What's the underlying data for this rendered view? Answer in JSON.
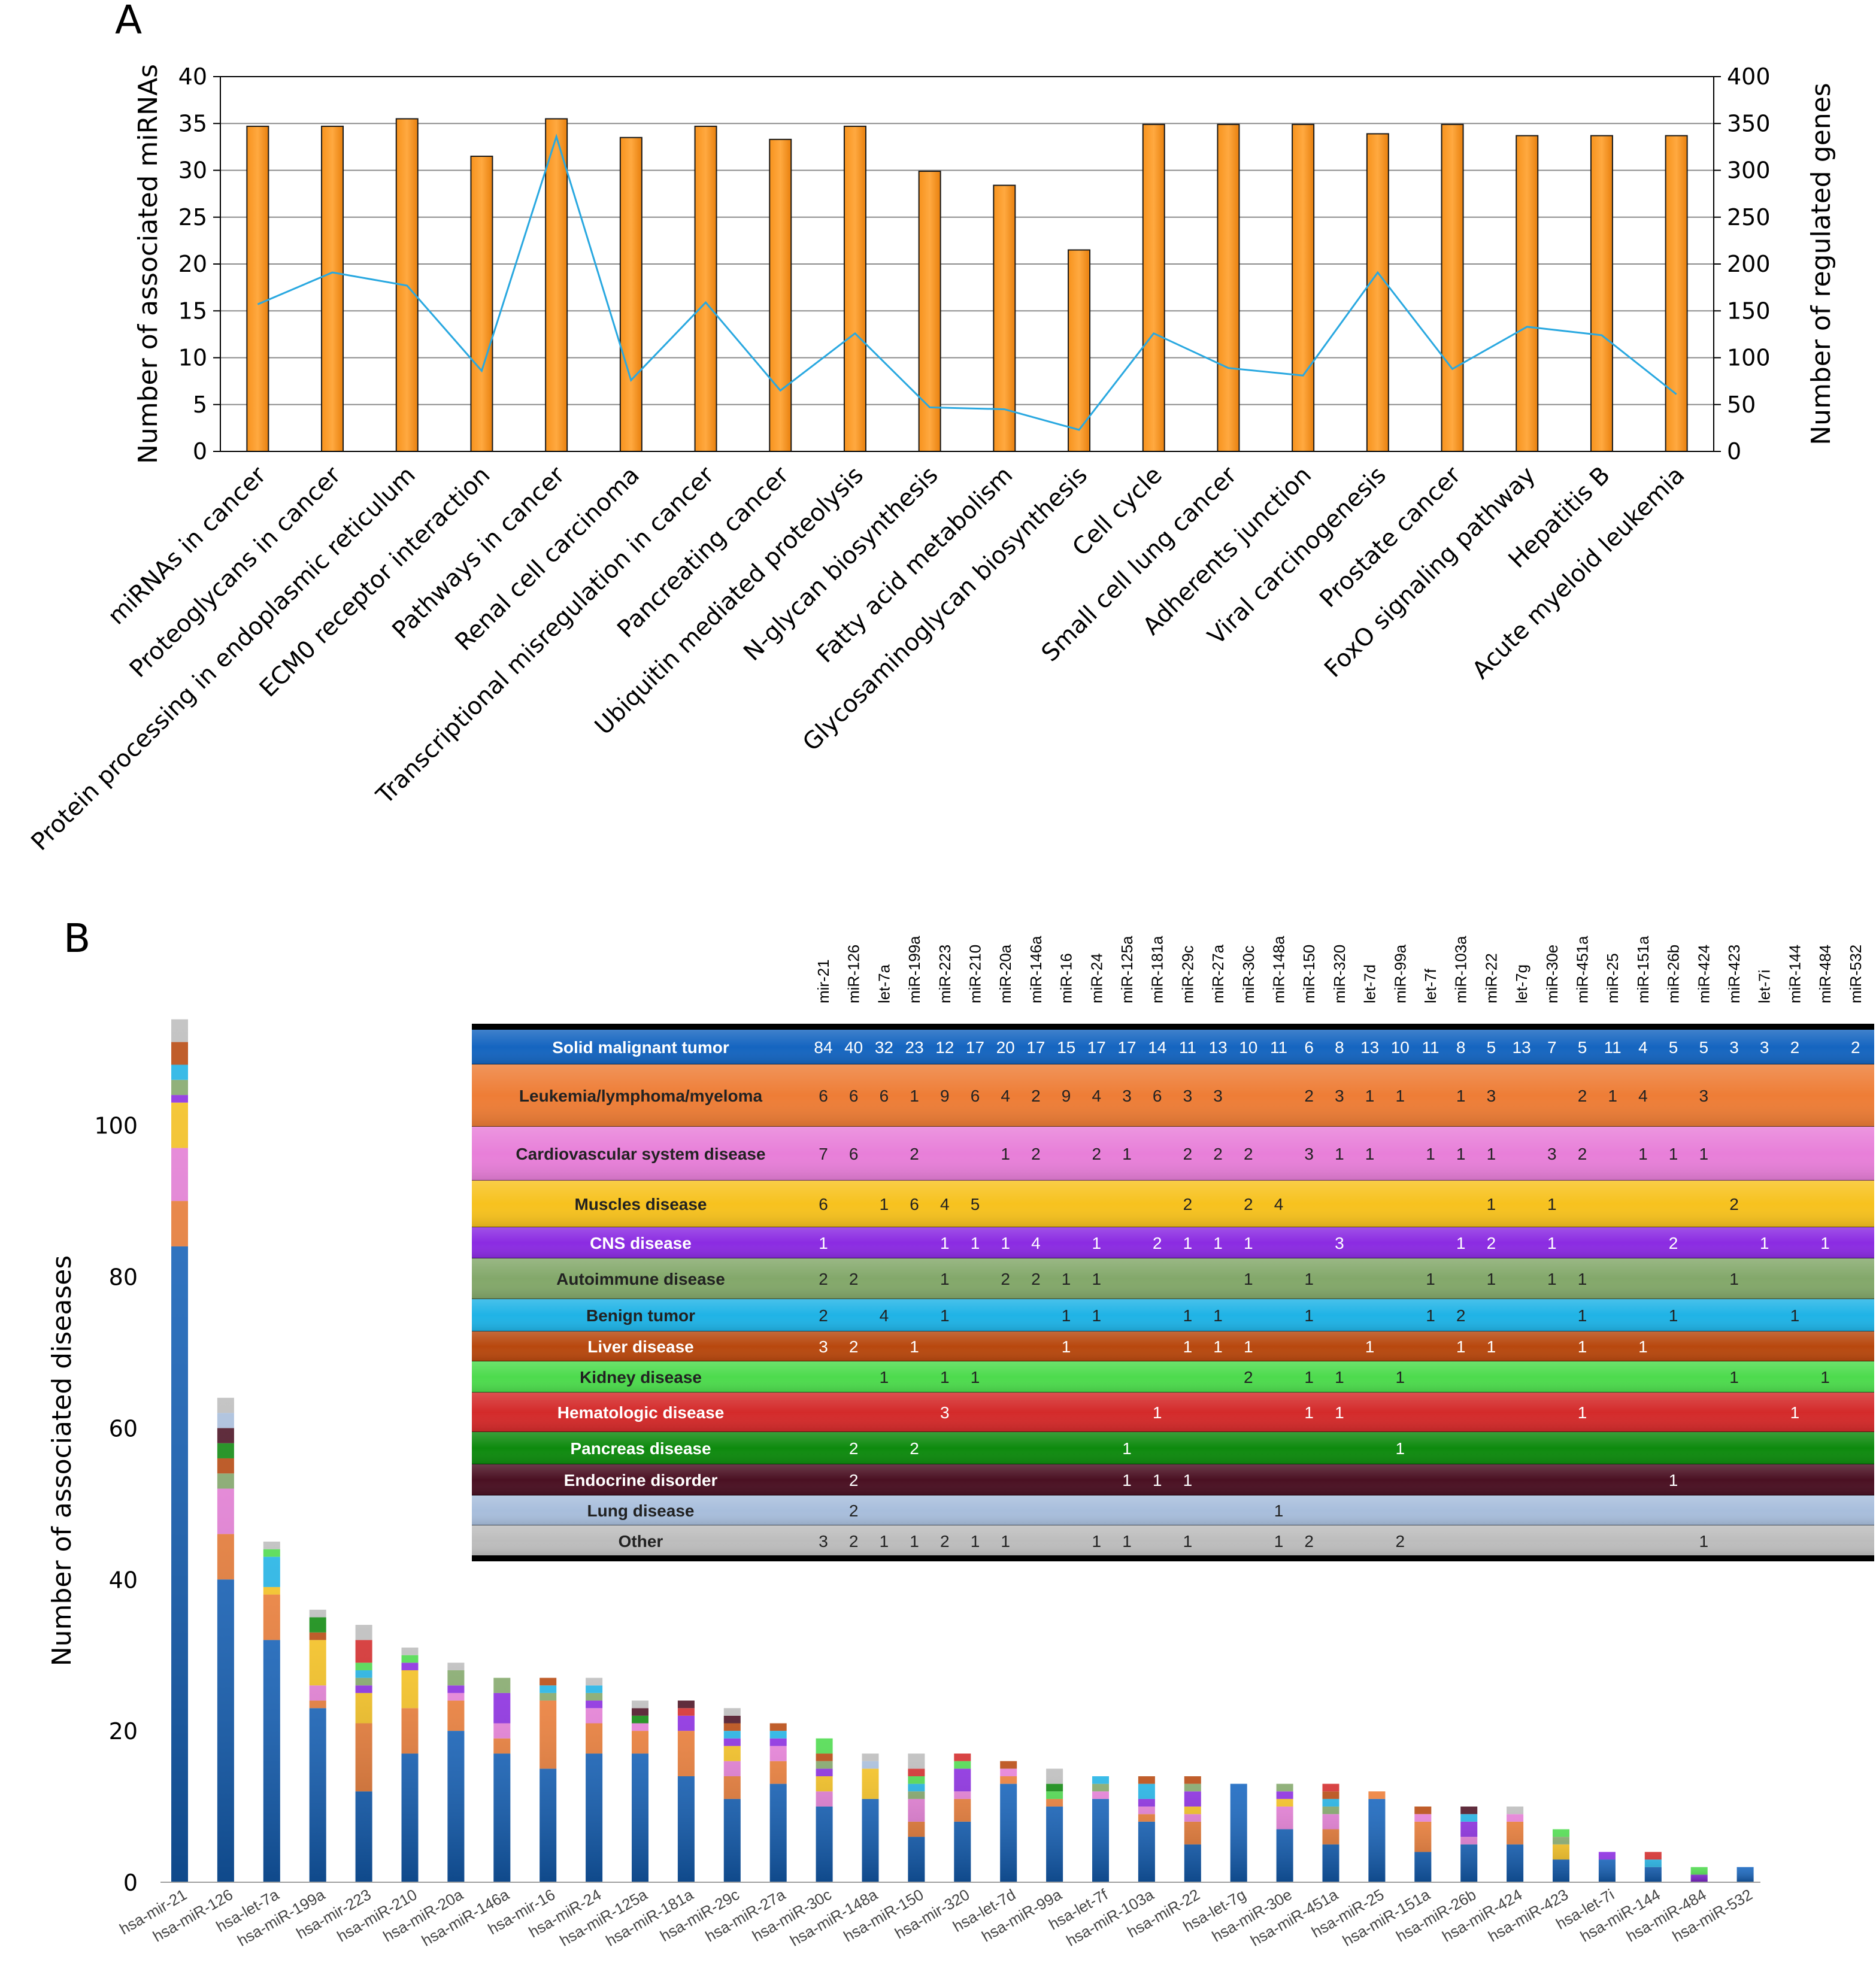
{
  "panel_labels": [
    "A",
    "B"
  ],
  "chart_data": [
    {
      "type": "bar",
      "panel": "A",
      "categories": [
        "miRNAs in cancer",
        "Proteoglycans in cancer",
        "Protein processing in endoplasmic reticulum",
        "ECM0 receptor interaction",
        "Pathways in cancer",
        "Renal cell carcinoma",
        "Transcriptional misregulation in cancer",
        "Pancreating cancer",
        "Ubiquitin mediated proteolysis",
        "N-glycan biosynthesis",
        "Fatty acid metabolism",
        "Glycosaminoglycan biosynthesis",
        "Cell cycle",
        "Small cell lung cancer",
        "Adherents junction",
        "Viral carcinogenesis",
        "Prostate cancer",
        "FoxO signaling pathway",
        "Hepatitis B",
        "Acute myeloid leukemia"
      ],
      "ylabel": "Number of associated miRNAs",
      "y2label": "Number of regulated genes",
      "ylim": [
        0,
        40
      ],
      "y2lim": [
        0,
        400
      ],
      "yticks": [
        "0",
        "5",
        "10",
        "15",
        "20",
        "25",
        "30",
        "35",
        "40"
      ],
      "y2ticks": [
        "0",
        "50",
        "100",
        "150",
        "200",
        "250",
        "300",
        "350",
        "400"
      ],
      "grid": true,
      "bar_color": "#F7931E",
      "line_color": "#29A8E0",
      "series": [
        {
          "type": "bar",
          "axis": "left",
          "values": [
            34.7,
            34.7,
            35.5,
            31.5,
            35.5,
            33.5,
            34.7,
            33.3,
            34.7,
            29.9,
            28.4,
            21.5,
            34.9,
            34.9,
            34.9,
            33.9,
            34.9,
            33.7,
            33.7,
            33.7
          ]
        },
        {
          "type": "line",
          "axis": "right",
          "values": [
            157,
            191,
            177,
            86,
            336,
            76,
            159,
            65,
            126,
            47,
            45,
            23,
            126,
            89,
            81,
            191,
            88,
            133,
            124,
            61
          ]
        }
      ]
    },
    {
      "type": "bar",
      "panel": "B",
      "stacked": true,
      "ylabel": "Number of associated diseases",
      "ylim": [
        0,
        115
      ],
      "yticks": [
        "0",
        "20",
        "40",
        "60",
        "80",
        "100"
      ],
      "categories": [
        "hsa-mir-21",
        "hsa-miR-126",
        "hsa-let-7a",
        "hsa-miR-199a",
        "hsa-mir-223",
        "hsa-miR-210",
        "hsa-miR-20a",
        "hsa-miR-146a",
        "hsa-mir-16",
        "hsa-miR-24",
        "hsa-miR-125a",
        "hsa-miR-181a",
        "hsa-miR-29c",
        "hsa-miR-27a",
        "hsa-miR-30c",
        "hsa-miR-148a",
        "hsa-miR-150",
        "hsa-mir-320",
        "hsa-let-7d",
        "hsa-miR-99a",
        "hsa-let-7f",
        "hsa-miR-103a",
        "hsa-miR-22",
        "hsa-let-7g",
        "hsa-miR-30e",
        "hsa-miR-451a",
        "hsa-miR-25",
        "hsa-miR-151a",
        "hsa-miR-26b",
        "hsa-miR-424",
        "hsa-miR-423",
        "hsa-let-7i",
        "hsa-miR-144",
        "hsa-miR-484",
        "hsa-miR-532"
      ],
      "table": {
        "columns": [
          "mir-21",
          "miR-126",
          "let-7a",
          "miR-199a",
          "miR-223",
          "miR-210",
          "miR-20a",
          "miR-146a",
          "miR-16",
          "miR-24",
          "miR-125a",
          "miR-181a",
          "miR-29c",
          "miR-27a",
          "miR-30c",
          "miR-148a",
          "miR-150",
          "miR-320",
          "let-7d",
          "miR-99a",
          "let-7f",
          "miR-103a",
          "miR-22",
          "let-7g",
          "miR-30e",
          "miR-451a",
          "miR-25",
          "miR-151a",
          "miR-26b",
          "miR-424",
          "miR-423",
          "let-7i",
          "miR-144",
          "miR-484",
          "miR-532"
        ]
      },
      "series": [
        {
          "name": "Solid malignant tumor",
          "color": "#1565C0",
          "text_color": "#FFFFFF",
          "values": [
            84,
            40,
            32,
            23,
            12,
            17,
            20,
            17,
            15,
            17,
            17,
            14,
            11,
            13,
            10,
            11,
            6,
            8,
            13,
            10,
            11,
            8,
            5,
            13,
            7,
            5,
            11,
            4,
            5,
            5,
            3,
            3,
            2,
            null,
            2
          ]
        },
        {
          "name": "Leukemia/lymphoma/myeloma",
          "color": "#EE7D36",
          "text_color": "#222222",
          "values": [
            6,
            6,
            6,
            1,
            9,
            6,
            4,
            2,
            9,
            4,
            3,
            6,
            3,
            3,
            null,
            null,
            2,
            3,
            1,
            1,
            null,
            1,
            3,
            null,
            null,
            2,
            1,
            4,
            null,
            3,
            null,
            null,
            null,
            null,
            null
          ]
        },
        {
          "name": "Cardiovascular system disease",
          "color": "#E87FD9",
          "text_color": "#222222",
          "values": [
            7,
            6,
            null,
            2,
            null,
            null,
            1,
            2,
            null,
            2,
            1,
            null,
            2,
            2,
            2,
            null,
            3,
            1,
            1,
            null,
            1,
            1,
            1,
            null,
            3,
            2,
            null,
            1,
            1,
            1,
            null,
            null,
            null,
            null,
            null
          ]
        },
        {
          "name": "Muscles disease",
          "color": "#F7C21E",
          "text_color": "#222222",
          "values": [
            6,
            null,
            1,
            6,
            4,
            5,
            null,
            null,
            null,
            null,
            null,
            null,
            2,
            null,
            2,
            4,
            null,
            null,
            null,
            null,
            null,
            null,
            1,
            null,
            1,
            null,
            null,
            null,
            null,
            null,
            2,
            null,
            null,
            null,
            null
          ]
        },
        {
          "name": "CNS disease",
          "color": "#8B2BE2",
          "text_color": "#FFFFFF",
          "values": [
            1,
            null,
            null,
            null,
            1,
            1,
            1,
            4,
            null,
            1,
            null,
            2,
            1,
            1,
            1,
            null,
            null,
            3,
            null,
            null,
            null,
            1,
            2,
            null,
            1,
            null,
            null,
            null,
            2,
            null,
            null,
            1,
            null,
            1,
            null
          ]
        },
        {
          "name": "Autoimmune disease",
          "color": "#83A86A",
          "text_color": "#222222",
          "values": [
            2,
            2,
            null,
            null,
            1,
            null,
            2,
            2,
            1,
            1,
            null,
            null,
            null,
            null,
            1,
            null,
            1,
            null,
            null,
            null,
            1,
            null,
            1,
            null,
            1,
            1,
            null,
            null,
            null,
            null,
            1,
            null,
            null,
            null,
            null
          ]
        },
        {
          "name": "Benign tumor",
          "color": "#1FB3E6",
          "text_color": "#222222",
          "values": [
            2,
            null,
            4,
            null,
            1,
            null,
            null,
            null,
            1,
            1,
            null,
            null,
            1,
            1,
            null,
            null,
            1,
            null,
            null,
            null,
            1,
            2,
            null,
            null,
            null,
            1,
            null,
            null,
            1,
            null,
            null,
            null,
            1,
            null,
            null
          ]
        },
        {
          "name": "Liver disease",
          "color": "#B8480E",
          "text_color": "#FFFFFF",
          "values": [
            3,
            2,
            null,
            1,
            null,
            null,
            null,
            null,
            1,
            null,
            null,
            null,
            1,
            1,
            1,
            null,
            null,
            null,
            1,
            null,
            null,
            1,
            1,
            null,
            null,
            1,
            null,
            1,
            null,
            null,
            null,
            null,
            null,
            null,
            null
          ]
        },
        {
          "name": "Kidney disease",
          "color": "#4DDB4D",
          "text_color": "#222222",
          "values": [
            null,
            null,
            1,
            null,
            1,
            1,
            null,
            null,
            null,
            null,
            null,
            null,
            null,
            null,
            2,
            null,
            1,
            1,
            null,
            1,
            null,
            null,
            null,
            null,
            null,
            null,
            null,
            null,
            null,
            null,
            1,
            null,
            null,
            1,
            null
          ]
        },
        {
          "name": "Hematologic disease",
          "color": "#D42A2A",
          "text_color": "#FFFFFF",
          "values": [
            null,
            null,
            null,
            null,
            3,
            null,
            null,
            null,
            null,
            null,
            null,
            1,
            null,
            null,
            null,
            null,
            1,
            1,
            null,
            null,
            null,
            null,
            null,
            null,
            null,
            1,
            null,
            null,
            null,
            null,
            null,
            null,
            1,
            null,
            null
          ]
        },
        {
          "name": "Pancreas disease",
          "color": "#0E8A0E",
          "text_color": "#FFFFFF",
          "values": [
            null,
            2,
            null,
            2,
            null,
            null,
            null,
            null,
            null,
            null,
            1,
            null,
            null,
            null,
            null,
            null,
            null,
            null,
            null,
            1,
            null,
            null,
            null,
            null,
            null,
            null,
            null,
            null,
            null,
            null,
            null,
            null,
            null,
            null,
            null
          ]
        },
        {
          "name": "Endocrine disorder",
          "color": "#4A1022",
          "text_color": "#FFFFFF",
          "values": [
            null,
            2,
            null,
            null,
            null,
            null,
            null,
            null,
            null,
            null,
            1,
            1,
            1,
            null,
            null,
            null,
            null,
            null,
            null,
            null,
            null,
            null,
            null,
            null,
            null,
            null,
            null,
            null,
            1,
            null,
            null,
            null,
            null,
            null,
            null
          ]
        },
        {
          "name": "Lung disease",
          "color": "#A8BEDC",
          "text_color": "#222222",
          "values": [
            null,
            2,
            null,
            null,
            null,
            null,
            null,
            null,
            null,
            null,
            null,
            null,
            null,
            null,
            null,
            1,
            null,
            null,
            null,
            null,
            null,
            null,
            null,
            null,
            null,
            null,
            null,
            null,
            null,
            null,
            null,
            null,
            null,
            null,
            null
          ]
        },
        {
          "name": "Other",
          "color": "#BDBDBD",
          "text_color": "#222222",
          "values": [
            3,
            2,
            1,
            1,
            2,
            1,
            1,
            null,
            null,
            1,
            1,
            null,
            1,
            null,
            null,
            1,
            2,
            null,
            null,
            2,
            null,
            null,
            null,
            null,
            null,
            null,
            null,
            null,
            null,
            1,
            null,
            null,
            null,
            null,
            null
          ]
        }
      ]
    }
  ]
}
